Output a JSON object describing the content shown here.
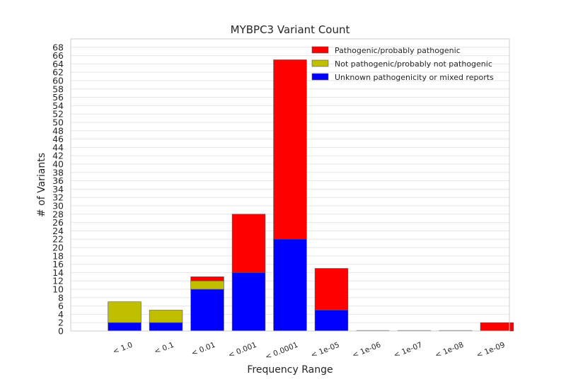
{
  "chart_data": {
    "type": "bar",
    "stacked": true,
    "title": "MYBPC3 Variant Count",
    "xlabel": "Frequency Range",
    "ylabel": "# of Variants",
    "categories": [
      "",
      "< 1.0",
      "< 0.1",
      "< 0.01",
      "< 0.001",
      "< 0.0001",
      "< 1e-05",
      "< 1e-06",
      "< 1e-07",
      "< 1e-08",
      "< 1e-09"
    ],
    "series": [
      {
        "name": "Unknown pathogenicity or mixed reports",
        "color": "#0000ff",
        "values": [
          0,
          2,
          2,
          10,
          14,
          22,
          5,
          0,
          0,
          0,
          0
        ]
      },
      {
        "name": "Not pathogenic/probably not pathogenic",
        "color": "#bfbf00",
        "values": [
          0,
          5,
          3,
          2,
          0,
          0,
          0,
          0,
          0,
          0,
          0
        ]
      },
      {
        "name": "Pathogenic/probably pathogenic",
        "color": "#ff0000",
        "values": [
          0,
          0,
          0,
          1,
          14,
          43,
          10,
          0,
          0,
          0,
          2
        ]
      }
    ],
    "legend_order": [
      2,
      1,
      0
    ],
    "yticks": [
      0,
      2,
      4,
      6,
      8,
      10,
      12,
      14,
      16,
      18,
      20,
      22,
      24,
      26,
      28,
      30,
      32,
      34,
      36,
      38,
      40,
      42,
      44,
      46,
      48,
      50,
      52,
      54,
      56,
      58,
      60,
      62,
      64,
      66,
      68
    ],
    "ylim": [
      0,
      70
    ],
    "grid": true,
    "legend_position": "top-right"
  }
}
